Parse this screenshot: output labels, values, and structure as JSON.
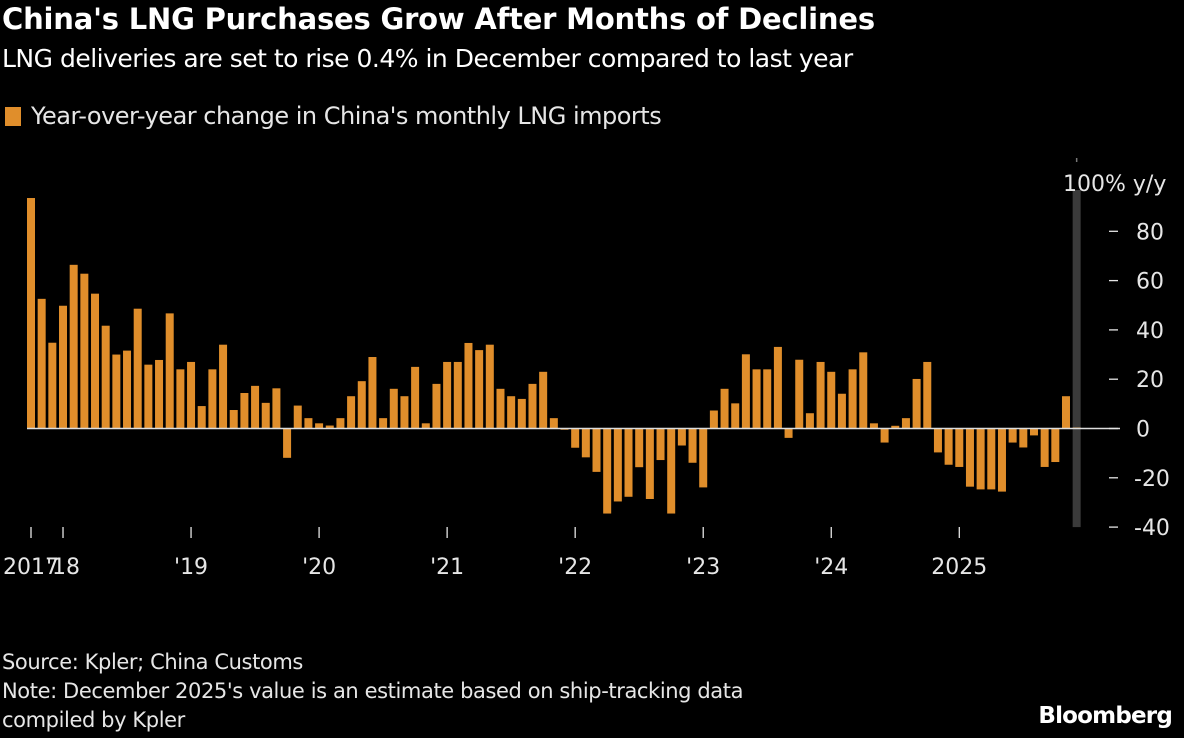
{
  "header": {
    "title": "China's LNG Purchases Grow After Months of Declines",
    "subtitle": "LNG deliveries are set to rise 0.4% in December compared to last year"
  },
  "footer": {
    "source": "Source: Kpler; China Customs",
    "note_line1": "Note: December 2025's value is an estimate based on ship-tracking data",
    "note_line2": "compiled by Kpler",
    "brand": "Bloomberg"
  },
  "colors": {
    "bar": "#e08e2b",
    "background": "#000000",
    "highlight_band": "#3a3a3a",
    "zero_line": "#dddddd",
    "text": "#e6e6e6"
  },
  "chart_data": {
    "type": "bar",
    "title": "China's LNG Purchases Grow After Months of Declines",
    "subtitle": "LNG deliveries are set to rise 0.4% in December compared to last year",
    "legend": [
      {
        "name": "Year-over-year change in China's monthly LNG imports",
        "color": "#e08e2b"
      }
    ],
    "legend_position": "top-left",
    "xlabel": "",
    "ylabel": "% y/y",
    "y_axis_side": "right",
    "ylim": [
      -40,
      100
    ],
    "yticks": [
      {
        "value": 100,
        "label": "100% y/y"
      },
      {
        "value": 80,
        "label": "80"
      },
      {
        "value": 60,
        "label": "60"
      },
      {
        "value": 40,
        "label": "40"
      },
      {
        "value": 20,
        "label": "20"
      },
      {
        "value": 0,
        "label": "0"
      },
      {
        "value": -20,
        "label": "-20"
      },
      {
        "value": -40,
        "label": "-40"
      }
    ],
    "grid": false,
    "start_month": "2017-10",
    "end_month": "2025-12",
    "xticks": [
      {
        "index": 0,
        "label": "2017"
      },
      {
        "index": 3,
        "label": "'18"
      },
      {
        "index": 15,
        "label": "'19"
      },
      {
        "index": 27,
        "label": "'20"
      },
      {
        "index": 39,
        "label": "'21"
      },
      {
        "index": 51,
        "label": "'22"
      },
      {
        "index": 63,
        "label": "'23"
      },
      {
        "index": 75,
        "label": "'24"
      },
      {
        "index": 87,
        "label": "2025"
      }
    ],
    "highlight": {
      "index": 98,
      "label": "December 2025 estimate"
    },
    "series": [
      {
        "name": "Year-over-year change in China's monthly LNG imports",
        "values": [
          93.5,
          52.6,
          34.8,
          49.8,
          66.4,
          62.8,
          54.7,
          41.7,
          30.0,
          31.6,
          48.6,
          25.9,
          27.8,
          46.7,
          24.0,
          27.0,
          9.1,
          24.0,
          34.0,
          7.5,
          14.4,
          17.3,
          10.4,
          16.3,
          -11.9,
          9.3,
          4.2,
          2.1,
          1.2,
          4.2,
          13.1,
          19.2,
          29.0,
          4.2,
          16.1,
          13.1,
          25.0,
          2.1,
          18.1,
          27.0,
          27.0,
          34.7,
          31.8,
          34.0,
          16.1,
          13.1,
          12.0,
          18.1,
          23.0,
          4.2,
          -0.5,
          -7.8,
          -11.7,
          -17.6,
          -34.5,
          -29.6,
          -27.7,
          -15.7,
          -28.6,
          -12.8,
          -34.5,
          -6.9,
          -13.9,
          -23.9,
          7.3,
          16.1,
          10.2,
          30.1,
          24.0,
          24.0,
          33.1,
          -3.8,
          27.9,
          6.2,
          27.0,
          23.0,
          14.1,
          24.0,
          30.9,
          2.1,
          -5.7,
          1.1,
          4.2,
          20.1,
          27.0,
          -9.7,
          -14.7,
          -15.6,
          -23.6,
          -24.7,
          -24.7,
          -25.6,
          -5.7,
          -7.7,
          -2.8,
          -15.6,
          -13.6,
          13.1,
          0.4
        ]
      }
    ]
  }
}
